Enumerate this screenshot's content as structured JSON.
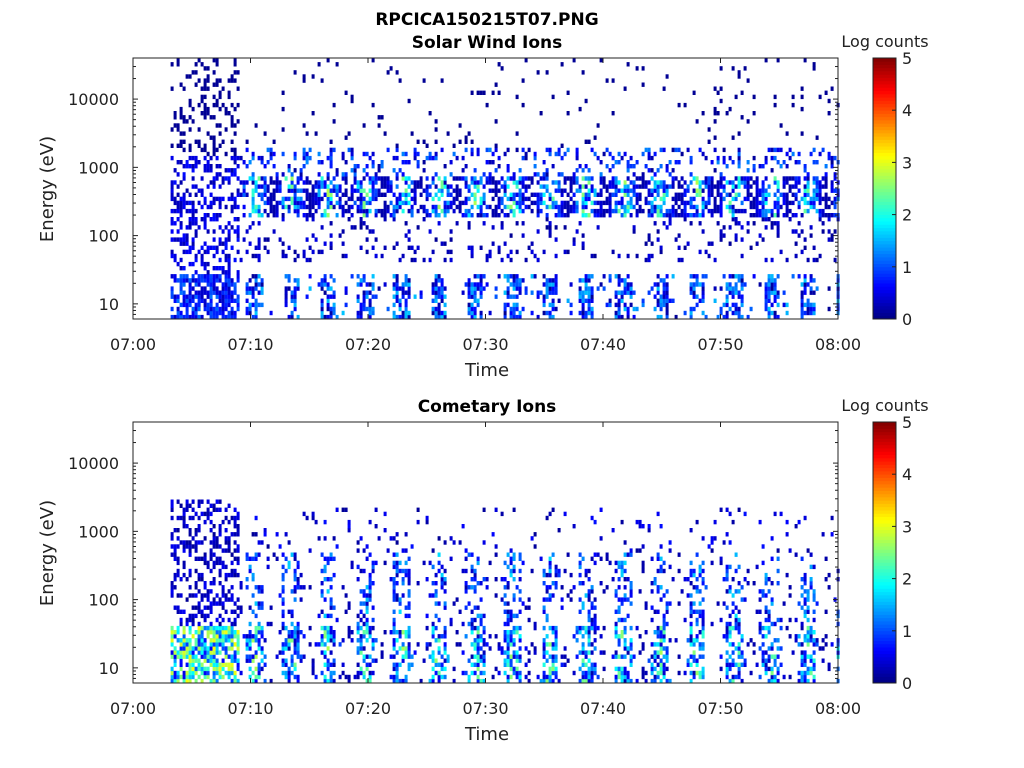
{
  "figure": {
    "title": "RPCICA150215T07.PNG"
  },
  "chart_data": [
    {
      "type": "heatmap",
      "title": "Solar Wind Ions",
      "xlabel": "Time",
      "ylabel": "Energy (eV)",
      "x_ticks": [
        "07:00",
        "07:10",
        "07:20",
        "07:30",
        "07:40",
        "07:50",
        "08:00"
      ],
      "x_range": [
        "07:00",
        "08:00"
      ],
      "y_scale": "log",
      "y_ticks": [
        "10",
        "100",
        "1000",
        "10000"
      ],
      "y_range": [
        6,
        40000
      ],
      "colorbar": {
        "label": "Log counts",
        "ticks": [
          "0",
          "1",
          "2",
          "3",
          "4",
          "5"
        ],
        "range": [
          0,
          5
        ],
        "colormap": "jet"
      },
      "main_band_energy_eV": [
        200,
        700
      ],
      "low_band_energy_eV": [
        6,
        28
      ]
    },
    {
      "type": "heatmap",
      "title": "Cometary Ions",
      "xlabel": "Time",
      "ylabel": "Energy (eV)",
      "x_ticks": [
        "07:00",
        "07:10",
        "07:20",
        "07:30",
        "07:40",
        "07:50",
        "08:00"
      ],
      "x_range": [
        "07:00",
        "08:00"
      ],
      "y_scale": "log",
      "y_ticks": [
        "10",
        "100",
        "1000",
        "10000"
      ],
      "y_range": [
        6,
        40000
      ],
      "colorbar": {
        "label": "Log counts",
        "ticks": [
          "0",
          "1",
          "2",
          "3",
          "4",
          "5"
        ],
        "range": [
          0,
          5
        ],
        "colormap": "jet"
      },
      "main_band_energy_eV": [
        8,
        500
      ],
      "low_band_energy_eV": [
        6,
        40
      ]
    }
  ],
  "colors": {
    "axis": "#222222",
    "background": "#ffffff"
  }
}
